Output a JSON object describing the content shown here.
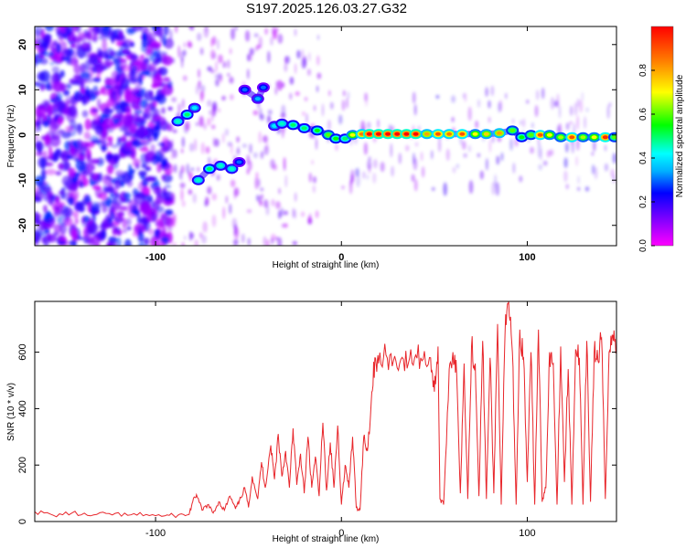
{
  "figure": {
    "title": "S197.2025.126.03.27.G32"
  },
  "chart_data": [
    {
      "type": "heatmap",
      "title": "S197.2025.126.03.27.G32",
      "xlabel": "Height of straight line (km)",
      "ylabel": "Frequency (Hz)",
      "xlim": [
        -165,
        148
      ],
      "ylim": [
        -24.5,
        24
      ],
      "x_ticks": [
        -100,
        0,
        100
      ],
      "y_ticks": [
        -20,
        -10,
        0,
        10,
        20
      ],
      "grid": false,
      "colorbar": {
        "label": "Normalized spectral amplitude",
        "range": [
          0,
          1
        ],
        "ticks": [
          0.0,
          0.2,
          0.4,
          0.6,
          0.8
        ],
        "colormap": [
          "#ff00ff",
          "#8000ff",
          "#0000ff",
          "#00b0ff",
          "#00ffff",
          "#00ff00",
          "#ffff00",
          "#ff8000",
          "#ff0000"
        ]
      },
      "ridge": [
        {
          "x": -88,
          "y": 3,
          "a": 0.45
        },
        {
          "x": -83,
          "y": 4.5,
          "a": 0.5
        },
        {
          "x": -79,
          "y": 6,
          "a": 0.4
        },
        {
          "x": -77,
          "y": -10,
          "a": 0.45
        },
        {
          "x": -71,
          "y": -7.5,
          "a": 0.5
        },
        {
          "x": -65,
          "y": -6.8,
          "a": 0.45
        },
        {
          "x": -59,
          "y": -7.5,
          "a": 0.45
        },
        {
          "x": -55,
          "y": -6,
          "a": 0.3
        },
        {
          "x": -52,
          "y": 10,
          "a": 0.3
        },
        {
          "x": -45,
          "y": 8,
          "a": 0.35
        },
        {
          "x": -42,
          "y": 10.5,
          "a": 0.3
        },
        {
          "x": -36,
          "y": 2,
          "a": 0.4
        },
        {
          "x": -32,
          "y": 2.5,
          "a": 0.45
        },
        {
          "x": -26,
          "y": 2.2,
          "a": 0.5
        },
        {
          "x": -20,
          "y": 1.5,
          "a": 0.5
        },
        {
          "x": -13,
          "y": 1.0,
          "a": 0.55
        },
        {
          "x": -7,
          "y": 0,
          "a": 0.6
        },
        {
          "x": -3,
          "y": -0.8,
          "a": 0.55
        },
        {
          "x": 2,
          "y": -0.8,
          "a": 0.5
        },
        {
          "x": 6,
          "y": 0,
          "a": 0.7
        },
        {
          "x": 11,
          "y": 0.2,
          "a": 0.85
        },
        {
          "x": 15,
          "y": 0.2,
          "a": 1.0
        },
        {
          "x": 20,
          "y": 0.2,
          "a": 1.0
        },
        {
          "x": 25,
          "y": 0.2,
          "a": 1.0
        },
        {
          "x": 30,
          "y": 0.2,
          "a": 1.0
        },
        {
          "x": 35,
          "y": 0.2,
          "a": 1.0
        },
        {
          "x": 40,
          "y": 0.2,
          "a": 1.0
        },
        {
          "x": 46,
          "y": 0.2,
          "a": 0.8
        },
        {
          "x": 52,
          "y": 0.2,
          "a": 0.9
        },
        {
          "x": 58,
          "y": 0.2,
          "a": 0.85
        },
        {
          "x": 65,
          "y": 0.2,
          "a": 0.9
        },
        {
          "x": 72,
          "y": 0.2,
          "a": 0.7
        },
        {
          "x": 78,
          "y": 0.2,
          "a": 0.75
        },
        {
          "x": 85,
          "y": 0.4,
          "a": 0.8
        },
        {
          "x": 92,
          "y": 1.0,
          "a": 0.6
        },
        {
          "x": 97,
          "y": -0.5,
          "a": 0.55
        },
        {
          "x": 102,
          "y": 0,
          "a": 0.6
        },
        {
          "x": 107,
          "y": 0,
          "a": 0.9
        },
        {
          "x": 112,
          "y": 0,
          "a": 0.7
        },
        {
          "x": 118,
          "y": -0.5,
          "a": 0.65
        },
        {
          "x": 124,
          "y": -0.5,
          "a": 0.9
        },
        {
          "x": 130,
          "y": -0.5,
          "a": 0.65
        },
        {
          "x": 136,
          "y": -0.5,
          "a": 0.7
        },
        {
          "x": 142,
          "y": -0.5,
          "a": 0.95
        },
        {
          "x": 147,
          "y": -0.5,
          "a": 0.6
        }
      ]
    },
    {
      "type": "line",
      "xlabel": "Height of straight line (km)",
      "ylabel": "SNR (10 * v/v)",
      "xlim": [
        -165,
        148
      ],
      "ylim": [
        0,
        780
      ],
      "x_ticks": [
        -100,
        0,
        100
      ],
      "y_ticks": [
        0,
        200,
        400,
        600
      ],
      "grid": false,
      "color": "#e8262b",
      "x": [
        -165,
        -155,
        -145,
        -135,
        -125,
        -115,
        -105,
        -95,
        -88,
        -82,
        -80,
        -78,
        -75,
        -72,
        -69,
        -66,
        -63,
        -60,
        -57,
        -55,
        -52,
        -50,
        -48,
        -45,
        -43,
        -41,
        -38,
        -36,
        -34,
        -32,
        -30,
        -28,
        -26,
        -24,
        -22,
        -20,
        -18,
        -16,
        -14,
        -12,
        -10,
        -8,
        -6,
        -4,
        -2,
        0,
        2,
        4,
        6,
        8,
        10,
        12,
        14,
        16,
        18,
        20,
        24,
        28,
        32,
        36,
        40,
        44,
        48,
        50,
        52,
        53,
        55,
        58,
        60,
        62,
        64,
        66,
        68,
        70,
        72,
        74,
        76,
        78,
        80,
        82,
        84,
        86,
        88,
        90,
        92,
        94,
        96,
        98,
        100,
        102,
        104,
        106,
        108,
        110,
        112,
        114,
        116,
        118,
        120,
        122,
        124,
        126,
        128,
        130,
        132,
        134,
        136,
        138,
        140,
        142,
        144,
        146,
        148
      ],
      "y": [
        35,
        22,
        30,
        20,
        28,
        22,
        25,
        20,
        22,
        25,
        70,
        95,
        40,
        60,
        30,
        70,
        40,
        90,
        45,
        70,
        120,
        50,
        160,
        80,
        210,
        120,
        270,
        150,
        310,
        160,
        250,
        120,
        330,
        130,
        240,
        100,
        300,
        120,
        230,
        90,
        350,
        110,
        280,
        120,
        340,
        60,
        200,
        120,
        300,
        50,
        40,
        300,
        250,
        420,
        580,
        560,
        590,
        570,
        575,
        560,
        590,
        575,
        580,
        460,
        620,
        80,
        60,
        540,
        600,
        520,
        100,
        560,
        80,
        620,
        560,
        90,
        640,
        80,
        580,
        100,
        700,
        60,
        660,
        780,
        600,
        60,
        680,
        580,
        140,
        600,
        60,
        680,
        70,
        120,
        600,
        560,
        60,
        620,
        140,
        540,
        60,
        610,
        580,
        60,
        640,
        70,
        600,
        570,
        650,
        80,
        600,
        660,
        620
      ]
    }
  ]
}
